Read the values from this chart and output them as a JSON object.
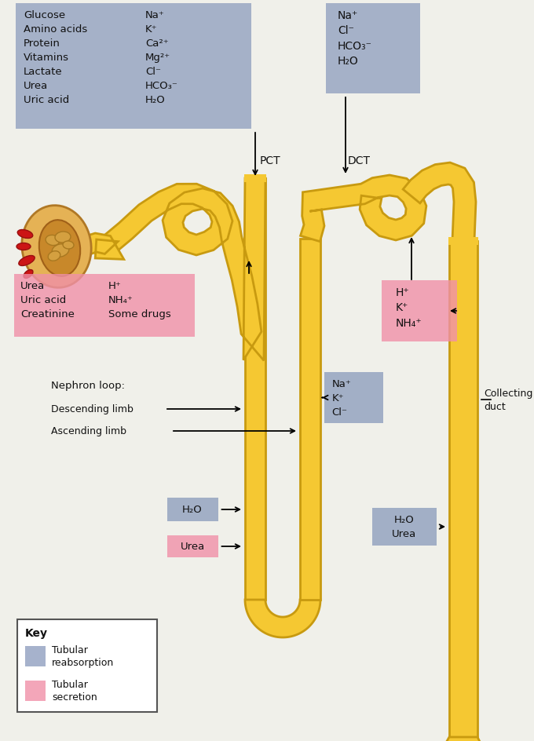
{
  "bg_color": "#f0f0ea",
  "blue_color": "#8899BB",
  "pink_color": "#F090A8",
  "tubule_color": "#F5C832",
  "tubule_edge": "#C89A10",
  "text_color": "#111111",
  "pct_label": "PCT",
  "dct_label": "DCT",
  "nephron_label": "Nephron loop:",
  "desc_label": "Descending limb",
  "asc_label": "Ascending limb",
  "collecting_label": "Collecting\nduct",
  "key_title": "Key",
  "key_blue_label": "Tubular\nreabsorption",
  "key_pink_label": "Tubular\nsecretion",
  "pct_left_col": "Glucose\nAmino acids\nProtein\nVitamins\nLactate\nUrea\nUric acid",
  "pct_right_col": "Na⁺\nK⁺\nCa²⁺\nMg²⁺\nCl⁻\nHCO₃⁻\nH₂O",
  "dct_box_text": "Na⁺\nCl⁻\nHCO₃⁻\nH₂O",
  "pct_sec_left": "Urea\nUric acid\nCreatinine",
  "pct_sec_right": "H⁺\nNH₄⁺\nSome drugs",
  "dct_sec_text": "H⁺\nK⁺\nNH₄⁺",
  "loop_na_text": "Na⁺\nK⁺\nCl⁻",
  "h2o_text": "H₂O",
  "urea_text": "Urea",
  "cd_text": "H₂O\nUrea"
}
